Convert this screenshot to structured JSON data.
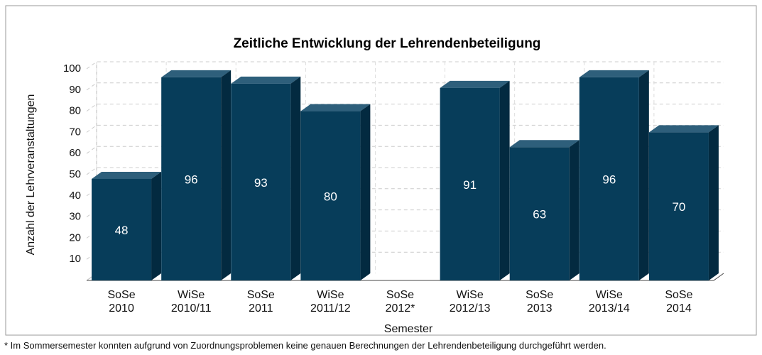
{
  "chart_data": {
    "type": "bar",
    "title": "Zeitliche Entwicklung der Lehrendenbeteiligung",
    "x_label": "Semester",
    "y_label": "Anzahl der Lehrveranstaltungen",
    "categories": [
      "SoSe\n2010",
      "WiSe\n2010/11",
      "SoSe\n2011",
      "WiSe\n2011/12",
      "SoSe\n2012*",
      "WiSe\n2012/13",
      "SoSe\n2013",
      "WiSe\n2013/14",
      "SoSe\n2014"
    ],
    "values": [
      48,
      96,
      93,
      80,
      null,
      91,
      63,
      96,
      70
    ],
    "color": "#073d5a",
    "ylim": [
      0,
      100
    ],
    "yticks": [
      10,
      20,
      30,
      40,
      50,
      60,
      70,
      80,
      90,
      100
    ],
    "grid": true,
    "footnote": "* Im Sommersemester konnten aufgrund von Zuordnungsproblemen keine genauen Berechnungen der Lehrendenbeteiligung durchgeführt werden."
  }
}
